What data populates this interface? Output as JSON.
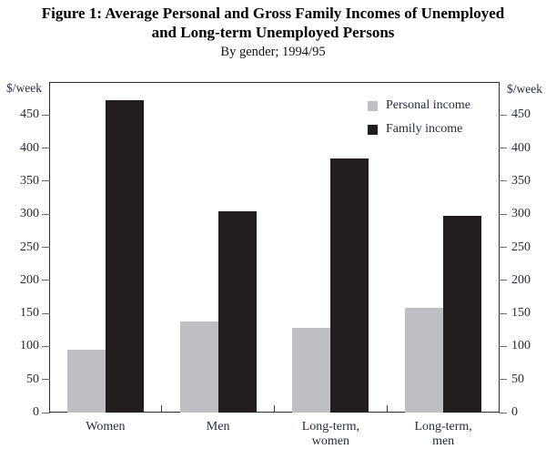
{
  "figure": {
    "title_line1": "Figure 1: Average Personal and Gross Family Incomes of Unemployed",
    "title_line2": "and Long-term Unemployed Persons",
    "subtitle": "By gender; 1994/95"
  },
  "axis": {
    "unit_left": "$/week",
    "unit_right": "$/week"
  },
  "chart_data": {
    "type": "bar",
    "title": "Figure 1: Average Personal and Gross Family Incomes of Unemployed and Long-term Unemployed Persons",
    "subtitle": "By gender; 1994/95",
    "categories": [
      "Women",
      "Men",
      "Long-term, women",
      "Long-term, men"
    ],
    "category_label_lines": [
      [
        "Women"
      ],
      [
        "Men"
      ],
      [
        "Long-term,",
        "women"
      ],
      [
        "Long-term,",
        "men"
      ]
    ],
    "series": [
      {
        "name": "Personal income",
        "color": "#bdbfc3",
        "values": [
          95,
          138,
          128,
          158
        ]
      },
      {
        "name": "Family income",
        "color": "#221e1f",
        "values": [
          472,
          304,
          384,
          297
        ]
      }
    ],
    "ylabel": "$/week",
    "xlabel": "",
    "yticks": [
      0,
      50,
      100,
      150,
      200,
      250,
      300,
      350,
      400,
      450
    ],
    "ylim": [
      0,
      500
    ],
    "grid": false,
    "dual_axis": true,
    "legend_position": "top-right-inside",
    "colors": {
      "personal_income": "#bdbfc3",
      "family_income": "#221e1f",
      "axis_text": "#242c3e",
      "border": "#2e2e2e"
    }
  }
}
